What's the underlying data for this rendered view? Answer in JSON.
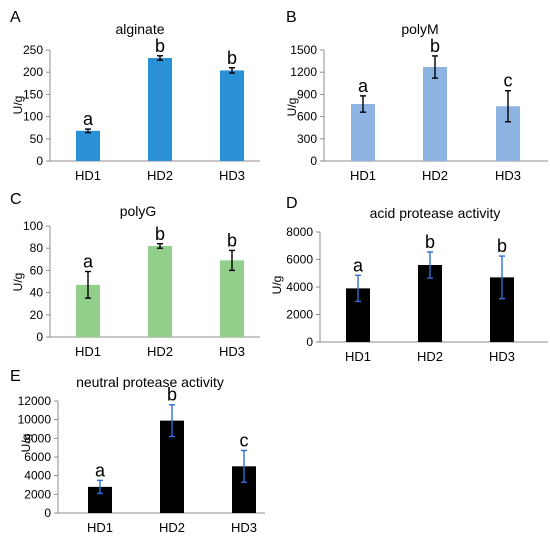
{
  "chart_data": [
    {
      "panel": "A",
      "type": "bar",
      "title": "alginate",
      "ylabel": "U/g",
      "categories": [
        "HD1",
        "HD2",
        "HD3"
      ],
      "values": [
        68,
        232,
        204
      ],
      "errors": [
        4,
        5,
        6
      ],
      "letters": [
        "a",
        "b",
        "b"
      ],
      "ylim": [
        0,
        250
      ],
      "yticks": [
        0,
        50,
        100,
        150,
        200,
        250
      ],
      "bar_color": "#2b91d6",
      "error_color": "#000000"
    },
    {
      "panel": "B",
      "type": "bar",
      "title": "polyM",
      "ylabel": "U/g",
      "categories": [
        "HD1",
        "HD2",
        "HD3"
      ],
      "values": [
        770,
        1270,
        740
      ],
      "errors": [
        110,
        150,
        210
      ],
      "letters": [
        "a",
        "b",
        "c"
      ],
      "ylim": [
        0,
        1500
      ],
      "yticks": [
        0,
        300,
        600,
        900,
        1200,
        1500
      ],
      "bar_color": "#8db3e2",
      "error_color": "#000000"
    },
    {
      "panel": "C",
      "type": "bar",
      "title": "polyG",
      "ylabel": "U/g",
      "categories": [
        "HD1",
        "HD2",
        "HD3"
      ],
      "values": [
        47,
        82,
        69
      ],
      "errors": [
        12,
        2,
        9
      ],
      "letters": [
        "a",
        "b",
        "b"
      ],
      "ylim": [
        0,
        100
      ],
      "yticks": [
        0,
        20,
        40,
        60,
        80,
        100
      ],
      "bar_color": "#92cf8a",
      "error_color": "#000000"
    },
    {
      "panel": "D",
      "type": "bar",
      "title": "acid protease activity",
      "ylabel": "U/g",
      "categories": [
        "HD1",
        "HD2",
        "HD3"
      ],
      "values": [
        3900,
        5600,
        4700
      ],
      "errors": [
        950,
        950,
        1550
      ],
      "letters": [
        "a",
        "b",
        "b"
      ],
      "ylim": [
        0,
        8000
      ],
      "yticks": [
        0,
        2000,
        4000,
        6000,
        8000
      ],
      "bar_color": "#000000",
      "error_color": "#2f6fd6"
    },
    {
      "panel": "E",
      "type": "bar",
      "title": "neutral protease activity",
      "ylabel": "U/g",
      "categories": [
        "HD1",
        "HD2",
        "HD3"
      ],
      "values": [
        2800,
        9900,
        5000
      ],
      "errors": [
        700,
        1700,
        1700
      ],
      "letters": [
        "a",
        "b",
        "c"
      ],
      "ylim": [
        0,
        12000
      ],
      "yticks": [
        0,
        2000,
        4000,
        6000,
        8000,
        10000,
        12000
      ],
      "bar_color": "#000000",
      "error_color": "#2f6fd6"
    }
  ]
}
